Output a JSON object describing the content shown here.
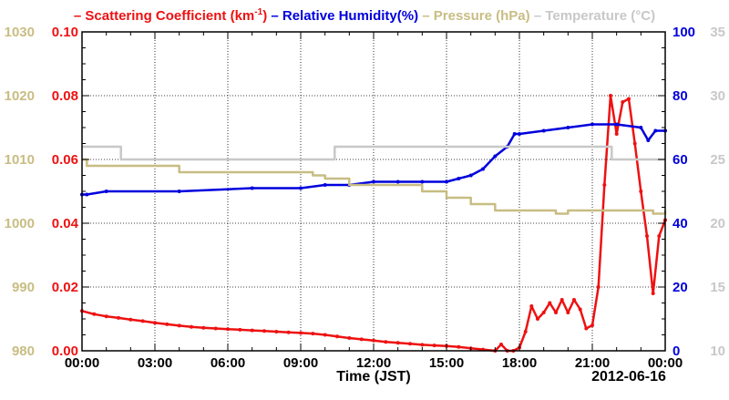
{
  "chart_data": {
    "type": "line",
    "date_label": "2012-06-16",
    "xlabel": "Time (JST)",
    "x_ticks": [
      "00:00",
      "03:00",
      "06:00",
      "09:00",
      "12:00",
      "15:00",
      "18:00",
      "21:00",
      "00:00"
    ],
    "xlim_hours": [
      0,
      24
    ],
    "grid": true,
    "legend": [
      {
        "label": "Scattering Coefficient (km",
        "sup": "-1",
        "suffix": ")",
        "color": "#ee1111"
      },
      {
        "label": "Relative Humidity(%)",
        "color": "#0000dd"
      },
      {
        "label": "Pressure (hPa)",
        "color": "#c8bd83"
      },
      {
        "label": "Temperature (°C)",
        "color": "#c8c8c8"
      }
    ],
    "axes": {
      "pressure": {
        "side": "left-outer",
        "color": "#c8bd83",
        "ylim": [
          980,
          1030
        ],
        "ticks": [
          "980",
          "990",
          "1000",
          "1010",
          "1020",
          "1030"
        ]
      },
      "scattering": {
        "side": "left-inner",
        "color": "#ee1111",
        "ylim": [
          0,
          0.1
        ],
        "ticks": [
          "0.00",
          "0.02",
          "0.04",
          "0.06",
          "0.08",
          "0.10"
        ]
      },
      "humidity": {
        "side": "right-inner",
        "color": "#0000dd",
        "ylim": [
          0,
          100
        ],
        "ticks": [
          "0",
          "20",
          "40",
          "60",
          "80",
          "100"
        ]
      },
      "temperature": {
        "side": "right-outer",
        "color": "#c8c8c8",
        "ylim": [
          10,
          35
        ],
        "ticks": [
          "10",
          "15",
          "20",
          "25",
          "30",
          "35"
        ]
      }
    },
    "series": [
      {
        "name": "Scattering Coefficient",
        "axis": "scattering",
        "color": "#ee1111",
        "markers": true,
        "x": [
          0,
          0.5,
          1,
          1.5,
          2,
          2.5,
          3,
          3.5,
          4,
          4.5,
          5,
          5.5,
          6,
          6.5,
          7,
          7.5,
          8,
          8.5,
          9,
          9.5,
          10,
          10.5,
          11,
          11.5,
          12,
          12.5,
          13,
          13.5,
          14,
          14.5,
          15,
          15.5,
          16,
          16.5,
          17,
          17.25,
          17.5,
          17.75,
          18,
          18.25,
          18.5,
          18.75,
          19,
          19.25,
          19.5,
          19.75,
          20,
          20.25,
          20.5,
          20.75,
          21,
          21.25,
          21.5,
          21.75,
          22,
          22.25,
          22.5,
          22.75,
          23,
          23.25,
          23.5,
          23.75,
          24
        ],
        "y": [
          0.0125,
          0.0115,
          0.0108,
          0.0103,
          0.0098,
          0.0093,
          0.0088,
          0.0083,
          0.0079,
          0.0075,
          0.0072,
          0.007,
          0.0068,
          0.0066,
          0.0064,
          0.0062,
          0.006,
          0.0058,
          0.0056,
          0.0054,
          0.005,
          0.0045,
          0.004,
          0.0036,
          0.0032,
          0.0028,
          0.0025,
          0.0022,
          0.0019,
          0.0017,
          0.0015,
          0.0012,
          0.0008,
          0.0004,
          0.0,
          0.002,
          0.0,
          0.0,
          0.001,
          0.006,
          0.014,
          0.01,
          0.012,
          0.015,
          0.012,
          0.016,
          0.012,
          0.016,
          0.013,
          0.007,
          0.008,
          0.02,
          0.052,
          0.08,
          0.068,
          0.078,
          0.079,
          0.065,
          0.05,
          0.036,
          0.018,
          0.036,
          0.041
        ]
      },
      {
        "name": "Relative Humidity",
        "axis": "humidity",
        "color": "#0000dd",
        "markers": true,
        "x": [
          0,
          0.2,
          1,
          4,
          7,
          9,
          10,
          11,
          12,
          13,
          14,
          15,
          15.5,
          16,
          16.5,
          17,
          17.5,
          17.8,
          18,
          19,
          20,
          21,
          22,
          23,
          23.3,
          23.6,
          24
        ],
        "y": [
          49,
          49,
          50,
          50,
          51,
          51,
          52,
          52,
          53,
          53,
          53,
          53,
          54,
          55,
          57,
          61,
          64,
          68,
          68,
          69,
          70,
          71,
          71,
          70,
          66,
          69,
          69
        ]
      },
      {
        "name": "Pressure",
        "axis": "pressure",
        "color": "#c8bd83",
        "markers": false,
        "x": [
          0,
          0.2,
          1,
          2,
          3,
          4,
          4.5,
          6,
          8,
          9,
          9.5,
          10,
          11,
          12,
          13,
          14,
          15,
          15.5,
          16,
          16.5,
          17,
          17.5,
          18,
          19,
          19.5,
          20,
          21,
          22,
          23,
          23.5,
          24
        ],
        "y": [
          1010,
          1009,
          1009,
          1009,
          1009,
          1008,
          1008,
          1008,
          1008,
          1008,
          1007.5,
          1007,
          1006,
          1006,
          1006,
          1005,
          1004,
          1004,
          1003,
          1003,
          1002,
          1002,
          1002,
          1002,
          1001.5,
          1002,
          1002,
          1002,
          1002,
          1001.5,
          1002
        ]
      },
      {
        "name": "Temperature",
        "axis": "temperature",
        "color": "#c8c8c8",
        "markers": false,
        "x": [
          0,
          1.5,
          1.6,
          5,
          8,
          10.3,
          10.4,
          13,
          18,
          21.7,
          21.8,
          24
        ],
        "y": [
          26,
          26,
          25,
          25,
          25,
          25,
          26,
          26,
          26,
          26,
          25,
          25
        ]
      }
    ]
  }
}
